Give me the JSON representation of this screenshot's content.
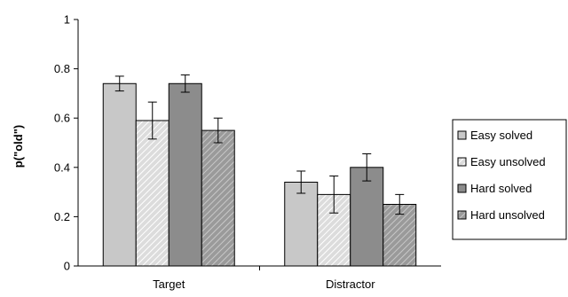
{
  "chart_data": {
    "type": "bar",
    "ylabel": "p(\"old\")",
    "xlabel": "",
    "ylim": [
      0,
      1
    ],
    "yticks": [
      "0",
      "0.2",
      "0.4",
      "0.6",
      "0.8",
      "1"
    ],
    "categories": [
      "Target",
      "Distractor"
    ],
    "legend_position": "right",
    "series": [
      {
        "name": "Easy solved",
        "values": [
          0.74,
          0.34
        ],
        "errors": [
          0.03,
          0.045
        ],
        "color": "#c8c8c8",
        "pattern": "solid"
      },
      {
        "name": "Easy unsolved",
        "values": [
          0.59,
          0.29
        ],
        "errors": [
          0.075,
          0.075
        ],
        "color": "#dcdcdc",
        "pattern": "hatch-light"
      },
      {
        "name": "Hard solved",
        "values": [
          0.74,
          0.4
        ],
        "errors": [
          0.035,
          0.055
        ],
        "color": "#8c8c8c",
        "pattern": "solid"
      },
      {
        "name": "Hard unsolved",
        "values": [
          0.55,
          0.25
        ],
        "errors": [
          0.05,
          0.04
        ],
        "color": "#a0a0a0",
        "pattern": "hatch-dark"
      }
    ]
  }
}
